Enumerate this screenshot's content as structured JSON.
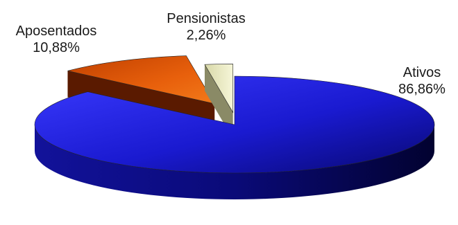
{
  "chart_data": {
    "type": "pie",
    "style": "3d-exploded",
    "slices": [
      {
        "label": "Ativos",
        "value": 86.86,
        "display": "86,86%",
        "color": "#1c1ccc"
      },
      {
        "label": "Aposentados",
        "value": 10.88,
        "display": "10,88%",
        "color": "#e35a0a"
      },
      {
        "label": "Pensionistas",
        "value": 2.26,
        "display": "2,26%",
        "color": "#eeeec6"
      }
    ]
  }
}
